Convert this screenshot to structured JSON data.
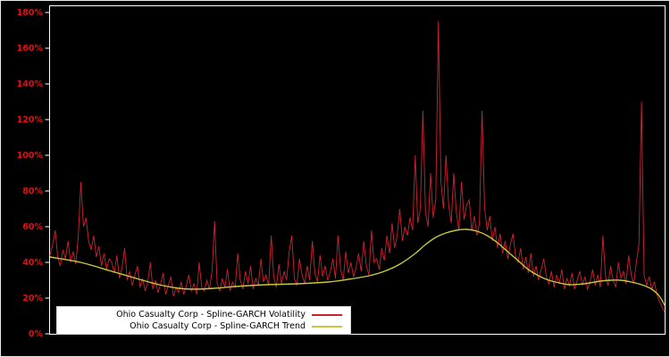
{
  "chart_data": {
    "type": "line",
    "title": "",
    "xlabel": "",
    "ylabel": "",
    "background": "#000000",
    "frame_color": "#e8e8e8",
    "axis_color": "#ffffff",
    "tick_label_color": "#dd1111",
    "grid": false,
    "legend_position": "bottom-left",
    "y_axis": {
      "min": 0,
      "max": 180,
      "tick_step": 20,
      "tick_labels": [
        "0%",
        "20%",
        "40%",
        "60%",
        "80%",
        "100%",
        "120%",
        "140%",
        "160%",
        "180%"
      ]
    },
    "series": [
      {
        "name": "Ohio Casualty Corp - Spline-GARCH Volatility",
        "color": "#cf2230",
        "style": "spiky",
        "unit": "%",
        "values": [
          44,
          50,
          58,
          43,
          38,
          47,
          42,
          52,
          40,
          46,
          39,
          55,
          85,
          60,
          65,
          52,
          47,
          55,
          43,
          49,
          38,
          45,
          36,
          42,
          40,
          34,
          44,
          31,
          37,
          48,
          30,
          35,
          27,
          33,
          38,
          26,
          31,
          24,
          29,
          40,
          25,
          30,
          23,
          28,
          34,
          22,
          27,
          32,
          21,
          26,
          23,
          29,
          22,
          27,
          33,
          24,
          28,
          22,
          40,
          26,
          24,
          30,
          25,
          35,
          63,
          28,
          24,
          31,
          26,
          36,
          24,
          29,
          26,
          45,
          30,
          25,
          35,
          28,
          38,
          25,
          31,
          27,
          42,
          29,
          33,
          27,
          55,
          32,
          26,
          39,
          28,
          35,
          30,
          46,
          55,
          31,
          27,
          42,
          33,
          28,
          38,
          30,
          52,
          34,
          29,
          44,
          32,
          38,
          30,
          35,
          42,
          31,
          55,
          36,
          30,
          46,
          34,
          40,
          32,
          37,
          45,
          35,
          52,
          38,
          33,
          58,
          40,
          42,
          36,
          48,
          41,
          55,
          45,
          62,
          48,
          55,
          70,
          52,
          60,
          55,
          65,
          58,
          100,
          62,
          70,
          125,
          68,
          60,
          90,
          65,
          75,
          175,
          85,
          70,
          100,
          72,
          62,
          90,
          68,
          58,
          85,
          64,
          72,
          75,
          58,
          66,
          55,
          62,
          125,
          70,
          58,
          66,
          52,
          60,
          48,
          56,
          45,
          52,
          42,
          50,
          56,
          44,
          40,
          48,
          36,
          43,
          34,
          45,
          32,
          38,
          30,
          36,
          42,
          32,
          28,
          35,
          26,
          33,
          28,
          36,
          25,
          31,
          27,
          34,
          25,
          30,
          35,
          27,
          32,
          25,
          29,
          36,
          27,
          33,
          26,
          55,
          32,
          27,
          38,
          30,
          26,
          40,
          31,
          35,
          28,
          44,
          33,
          28,
          40,
          50,
          130,
          33,
          27,
          32,
          25,
          29,
          22,
          18,
          15,
          12
        ]
      },
      {
        "name": "Ohio Casualty Corp - Spline-GARCH Trend",
        "color": "#c8c83c",
        "style": "smooth",
        "unit": "%",
        "points": [
          [
            0,
            43
          ],
          [
            12,
            40
          ],
          [
            24,
            35
          ],
          [
            36,
            30
          ],
          [
            44,
            27
          ],
          [
            50,
            25.5
          ],
          [
            56,
            25
          ],
          [
            64,
            25.5
          ],
          [
            72,
            26.5
          ],
          [
            84,
            27.5
          ],
          [
            96,
            28
          ],
          [
            108,
            29
          ],
          [
            116,
            30.5
          ],
          [
            124,
            32.5
          ],
          [
            130,
            35
          ],
          [
            136,
            39
          ],
          [
            142,
            45
          ],
          [
            146,
            50
          ],
          [
            150,
            54
          ],
          [
            154,
            56.5
          ],
          [
            158,
            58
          ],
          [
            162,
            58.5
          ],
          [
            166,
            57.5
          ],
          [
            170,
            55
          ],
          [
            174,
            51
          ],
          [
            178,
            46
          ],
          [
            182,
            41
          ],
          [
            186,
            36
          ],
          [
            190,
            32.5
          ],
          [
            194,
            30
          ],
          [
            198,
            28.5
          ],
          [
            202,
            27.5
          ],
          [
            206,
            27.8
          ],
          [
            210,
            28.5
          ],
          [
            214,
            29.5
          ],
          [
            218,
            30
          ],
          [
            222,
            30
          ],
          [
            226,
            29
          ],
          [
            230,
            27.5
          ],
          [
            234,
            25
          ],
          [
            237,
            21
          ],
          [
            239,
            16
          ]
        ]
      }
    ]
  }
}
